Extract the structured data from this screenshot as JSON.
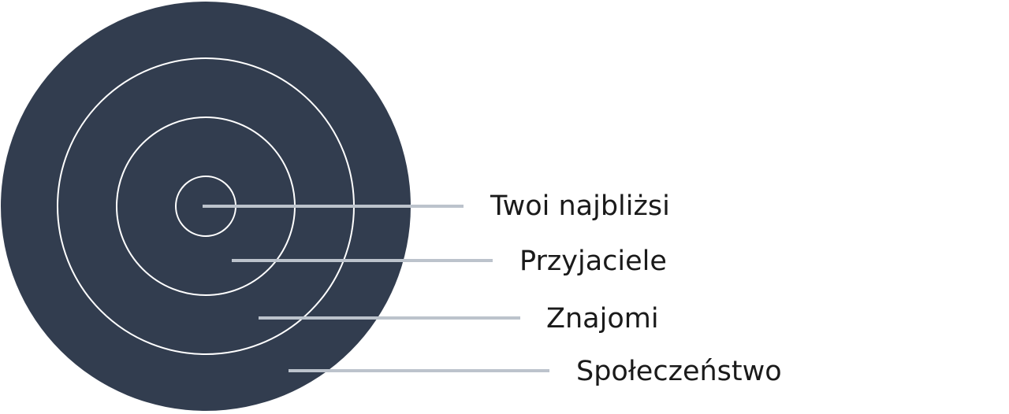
{
  "colors": {
    "disc": "#323d4f",
    "ring": "#ffffff",
    "leader": "#bcc3cc",
    "text": "#1a1a1a"
  },
  "labels": [
    {
      "text": "Twoi najbliżsi"
    },
    {
      "text": "Przyjaciele"
    },
    {
      "text": "Znajomi"
    },
    {
      "text": "Społeczeństwo"
    }
  ]
}
